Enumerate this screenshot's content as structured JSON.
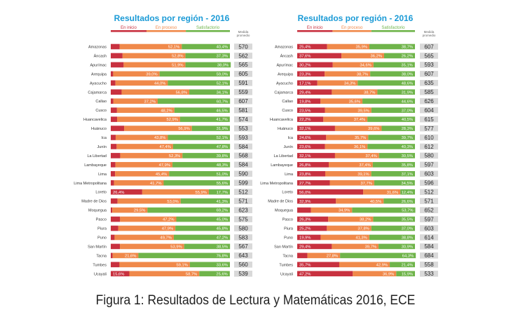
{
  "caption": "Figura 1: Resultados de Lectura y Matemáticas 2016, ECE",
  "legend_labels": [
    "En inicio",
    "En proceso",
    "Satisfactorio"
  ],
  "avg_label_lines": [
    "Medida",
    "promedio"
  ],
  "colors": {
    "en_inicio": "#c8313f",
    "en_proceso": "#f0894a",
    "satisfactorio": "#6fb44a",
    "title": "#1a9ad6",
    "avg_box": "#d9d9d9"
  },
  "chart_data": [
    {
      "type": "bar",
      "stacked": true,
      "orientation": "horizontal",
      "title": "Resultados por región - 2016",
      "series_names": [
        "En inicio",
        "En proceso",
        "Satisfactorio"
      ],
      "avg_header": "Medida promedio",
      "rows": [
        {
          "region": "Amazonas",
          "values": [
            7.5,
            52.1,
            40.4
          ],
          "avg": 570
        },
        {
          "region": "Áncash",
          "values": [
            9.9,
            52.8,
            37.3
          ],
          "avg": 562
        },
        {
          "region": "Apurímac",
          "values": [
            10.8,
            51.9,
            38.0
          ],
          "avg": 565
        },
        {
          "region": "Arequipa",
          "values": [
            2.0,
            39.0,
            59.0
          ],
          "avg": 605
        },
        {
          "region": "Ayacucho",
          "values": [
            3.9,
            44.0,
            52.1
          ],
          "avg": 591
        },
        {
          "region": "Cajamarca",
          "values": [
            9.1,
            56.8,
            34.1
          ],
          "avg": 559
        },
        {
          "region": "Callao",
          "values": [
            2.2,
            37.2,
            60.7
          ],
          "avg": 607
        },
        {
          "region": "Cusco",
          "values": [
            5.2,
            48.2,
            46.5
          ],
          "avg": 581
        },
        {
          "region": "Huancavelica",
          "values": [
            5.3,
            52.9,
            41.7
          ],
          "avg": 574
        },
        {
          "region": "Huánuco",
          "values": [
            11.2,
            56.9,
            31.9
          ],
          "avg": 553
        },
        {
          "region": "Ica",
          "values": [
            4.1,
            43.8,
            52.1
          ],
          "avg": 593
        },
        {
          "region": "Junín",
          "values": [
            4.9,
            47.4,
            47.8
          ],
          "avg": 584
        },
        {
          "region": "La Libertad",
          "values": [
            7.9,
            52.3,
            39.8
          ],
          "avg": 568
        },
        {
          "region": "Lambayeque",
          "values": [
            3.9,
            47.9,
            48.3
          ],
          "avg": 584
        },
        {
          "region": "Lima",
          "values": [
            3.6,
            45.4,
            51.0
          ],
          "avg": 590
        },
        {
          "region": "Lima Metropolitana",
          "values": [
            2.7,
            41.7,
            55.6
          ],
          "avg": 599
        },
        {
          "region": "Loreto",
          "values": [
            26.4,
            55.9,
            17.7
          ],
          "avg": 512
        },
        {
          "region": "Madre de Dios",
          "values": [
            5.7,
            53.0,
            41.3
          ],
          "avg": 571
        },
        {
          "region": "Moquegua",
          "values": [
            1.3,
            29.5,
            69.2
          ],
          "avg": 623
        },
        {
          "region": "Pasco",
          "values": [
            7.8,
            47.2,
            45.0
          ],
          "avg": 575
        },
        {
          "region": "Piura",
          "values": [
            6.3,
            47.9,
            45.8
          ],
          "avg": 580
        },
        {
          "region": "Puno",
          "values": [
            3.2,
            49.7,
            47.2
          ],
          "avg": 583
        },
        {
          "region": "San Martín",
          "values": [
            7.7,
            53.9,
            38.5
          ],
          "avg": 567
        },
        {
          "region": "Tacna",
          "values": [
            1.6,
            21.6,
            76.8
          ],
          "avg": 643
        },
        {
          "region": "Tumbes",
          "values": [
            7.3,
            59.1,
            33.6
          ],
          "avg": 560
        },
        {
          "region": "Ucayali",
          "values": [
            15.6,
            58.7,
            25.6
          ],
          "avg": 539
        }
      ]
    },
    {
      "type": "bar",
      "stacked": true,
      "orientation": "horizontal",
      "title": "Resultados por región - 2016",
      "series_names": [
        "En inicio",
        "En proceso",
        "Satisfactorio"
      ],
      "avg_header": "Medida promedio",
      "rows": [
        {
          "region": "Amazonas",
          "values": [
            25.4,
            35.9,
            38.7
          ],
          "avg": 607
        },
        {
          "region": "Áncash",
          "values": [
            37.6,
            36.2,
            26.2
          ],
          "avg": 565
        },
        {
          "region": "Apurímac",
          "values": [
            30.2,
            34.6,
            35.1
          ],
          "avg": 593
        },
        {
          "region": "Arequipa",
          "values": [
            23.3,
            38.7,
            38.0
          ],
          "avg": 607
        },
        {
          "region": "Ayacucho",
          "values": [
            17.1,
            34.3,
            48.6
          ],
          "avg": 635
        },
        {
          "region": "Cajamarca",
          "values": [
            29.4,
            38.7,
            31.9
          ],
          "avg": 585
        },
        {
          "region": "Callao",
          "values": [
            19.8,
            35.6,
            44.6
          ],
          "avg": 626
        },
        {
          "region": "Cusco",
          "values": [
            23.5,
            39.5,
            37.0
          ],
          "avg": 604
        },
        {
          "region": "Huancavelica",
          "values": [
            22.2,
            37.4,
            40.5
          ],
          "avg": 615
        },
        {
          "region": "Huánuco",
          "values": [
            32.1,
            39.6,
            28.3
          ],
          "avg": 577
        },
        {
          "region": "Ica",
          "values": [
            24.6,
            35.7,
            39.7
          ],
          "avg": 610
        },
        {
          "region": "Junín",
          "values": [
            23.6,
            36.1,
            40.3
          ],
          "avg": 612
        },
        {
          "region": "La Libertad",
          "values": [
            32.1,
            37.4,
            30.5
          ],
          "avg": 580
        },
        {
          "region": "Lambayeque",
          "values": [
            26.8,
            37.4,
            35.8
          ],
          "avg": 597
        },
        {
          "region": "Lima",
          "values": [
            23.8,
            39.1,
            37.1
          ],
          "avg": 603
        },
        {
          "region": "Lima Metropolitana",
          "values": [
            27.7,
            37.7,
            34.5
          ],
          "avg": 596
        },
        {
          "region": "Loreto",
          "values": [
            56.0,
            31.6,
            12.4
          ],
          "avg": 512
        },
        {
          "region": "Madre de Dios",
          "values": [
            32.9,
            40.5,
            26.6
          ],
          "avg": 571
        },
        {
          "region": "Moquegua",
          "values": [
            11.7,
            34.9,
            53.7
          ],
          "avg": 652
        },
        {
          "region": "Pasco",
          "values": [
            26.3,
            38.2,
            35.5
          ],
          "avg": 597
        },
        {
          "region": "Piura",
          "values": [
            25.2,
            37.8,
            37.0
          ],
          "avg": 603
        },
        {
          "region": "Puno",
          "values": [
            19.9,
            41.3,
            38.8
          ],
          "avg": 614
        },
        {
          "region": "San Martín",
          "values": [
            29.4,
            39.7,
            30.9
          ],
          "avg": 584
        },
        {
          "region": "Tacna",
          "values": [
            8.6,
            27.8,
            64.3
          ],
          "avg": 684
        },
        {
          "region": "Tumbes",
          "values": [
            35.7,
            42.9,
            21.4
          ],
          "avg": 558
        },
        {
          "region": "Ucayali",
          "values": [
            47.2,
            36.9,
            15.9
          ],
          "avg": 533
        }
      ]
    }
  ]
}
